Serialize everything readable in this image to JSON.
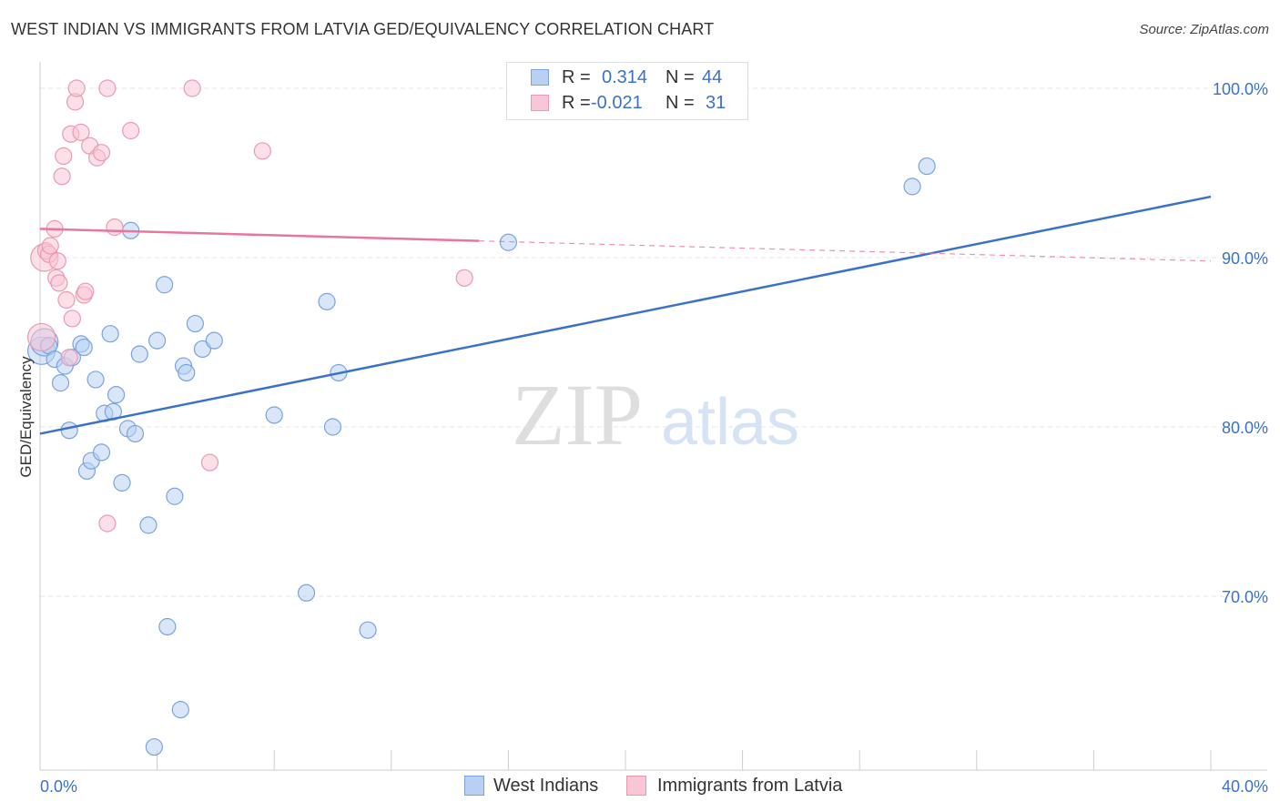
{
  "header": {
    "title": "WEST INDIAN VS IMMIGRANTS FROM LATVIA GED/EQUIVALENCY CORRELATION CHART",
    "source": "Source: ZipAtlas.com"
  },
  "watermark": {
    "zip": "ZIP",
    "atlas": "atlas"
  },
  "legend_top": {
    "rows": [
      {
        "r_label": "R =",
        "r_value": "0.314",
        "n_label": "N =",
        "n_value": "44"
      },
      {
        "r_label": "R =",
        "r_value": "-0.021",
        "n_label": "N =",
        "n_value": "31"
      }
    ]
  },
  "legend_bottom": {
    "series1": "West Indians",
    "series2": "Immigrants from Latvia"
  },
  "chart_data": {
    "type": "scatter",
    "title": "WEST INDIAN VS IMMIGRANTS FROM LATVIA GED/EQUIVALENCY CORRELATION CHART",
    "xlabel": "",
    "ylabel": "GED/Equivalency",
    "xlim": [
      0,
      40
    ],
    "ylim": [
      61,
      101
    ],
    "x_tick_labels": [
      "0.0%",
      "40.0%"
    ],
    "y_ticks": [
      70,
      80,
      90,
      100
    ],
    "y_tick_labels": [
      "70.0%",
      "80.0%",
      "90.0%",
      "100.0%"
    ],
    "grid": true,
    "legend_position": "top-center",
    "colors": {
      "series1": "#3a72c9",
      "series1_fill": "#b8d1f3",
      "series2": "#e8769b",
      "series2_fill": "#f8c6d5",
      "tick_label": "#3a72c9"
    },
    "series": [
      {
        "name": "West Indians",
        "r": 0.314,
        "n": 44,
        "trend": {
          "x": [
            0,
            40
          ],
          "y": [
            79.6,
            93.6
          ],
          "dashed_from": null
        },
        "points": [
          [
            0.05,
            84.5
          ],
          [
            0.15,
            85.0
          ],
          [
            0.3,
            84.8
          ],
          [
            0.5,
            84.0
          ],
          [
            0.7,
            82.6
          ],
          [
            0.85,
            83.6
          ],
          [
            1.0,
            79.8
          ],
          [
            1.1,
            84.1
          ],
          [
            1.4,
            84.9
          ],
          [
            1.5,
            84.7
          ],
          [
            1.6,
            77.4
          ],
          [
            1.75,
            78.0
          ],
          [
            1.9,
            82.8
          ],
          [
            2.1,
            78.5
          ],
          [
            2.2,
            80.8
          ],
          [
            2.4,
            85.5
          ],
          [
            2.5,
            80.9
          ],
          [
            2.6,
            81.9
          ],
          [
            2.8,
            76.7
          ],
          [
            3.0,
            79.9
          ],
          [
            3.1,
            91.6
          ],
          [
            3.25,
            79.6
          ],
          [
            3.4,
            84.3
          ],
          [
            3.7,
            74.2
          ],
          [
            3.9,
            61.1
          ],
          [
            4.0,
            85.1
          ],
          [
            4.25,
            88.4
          ],
          [
            4.35,
            68.2
          ],
          [
            4.6,
            75.9
          ],
          [
            4.8,
            63.3
          ],
          [
            4.9,
            83.6
          ],
          [
            5.0,
            83.2
          ],
          [
            5.3,
            86.1
          ],
          [
            5.55,
            84.6
          ],
          [
            5.95,
            85.1
          ],
          [
            8.0,
            80.7
          ],
          [
            9.1,
            70.2
          ],
          [
            9.8,
            87.4
          ],
          [
            10.0,
            80.0
          ],
          [
            10.2,
            83.2
          ],
          [
            11.2,
            68.0
          ],
          [
            16.0,
            90.9
          ],
          [
            29.8,
            94.2
          ],
          [
            30.3,
            95.4
          ]
        ]
      },
      {
        "name": "Immigrants from Latvia",
        "r": -0.021,
        "n": 31,
        "trend": {
          "x": [
            0,
            40
          ],
          "y": [
            91.7,
            89.8
          ],
          "dashed_from": 15.0
        },
        "points": [
          [
            0.05,
            85.3
          ],
          [
            0.15,
            90.0
          ],
          [
            0.2,
            90.4
          ],
          [
            0.3,
            90.2
          ],
          [
            0.35,
            90.7
          ],
          [
            0.5,
            91.7
          ],
          [
            0.55,
            88.8
          ],
          [
            0.6,
            89.8
          ],
          [
            0.65,
            88.5
          ],
          [
            0.75,
            94.8
          ],
          [
            0.8,
            96.0
          ],
          [
            0.9,
            87.5
          ],
          [
            1.0,
            84.1
          ],
          [
            1.05,
            97.3
          ],
          [
            1.1,
            86.4
          ],
          [
            1.2,
            99.2
          ],
          [
            1.25,
            100.0
          ],
          [
            1.4,
            97.4
          ],
          [
            1.5,
            87.8
          ],
          [
            1.55,
            88.0
          ],
          [
            1.7,
            96.6
          ],
          [
            1.95,
            95.9
          ],
          [
            2.1,
            96.2
          ],
          [
            2.3,
            74.3
          ],
          [
            2.3,
            100.0
          ],
          [
            2.55,
            91.8
          ],
          [
            3.1,
            97.5
          ],
          [
            5.2,
            100.0
          ],
          [
            5.8,
            77.9
          ],
          [
            7.6,
            96.3
          ],
          [
            14.5,
            88.8
          ]
        ]
      }
    ]
  }
}
